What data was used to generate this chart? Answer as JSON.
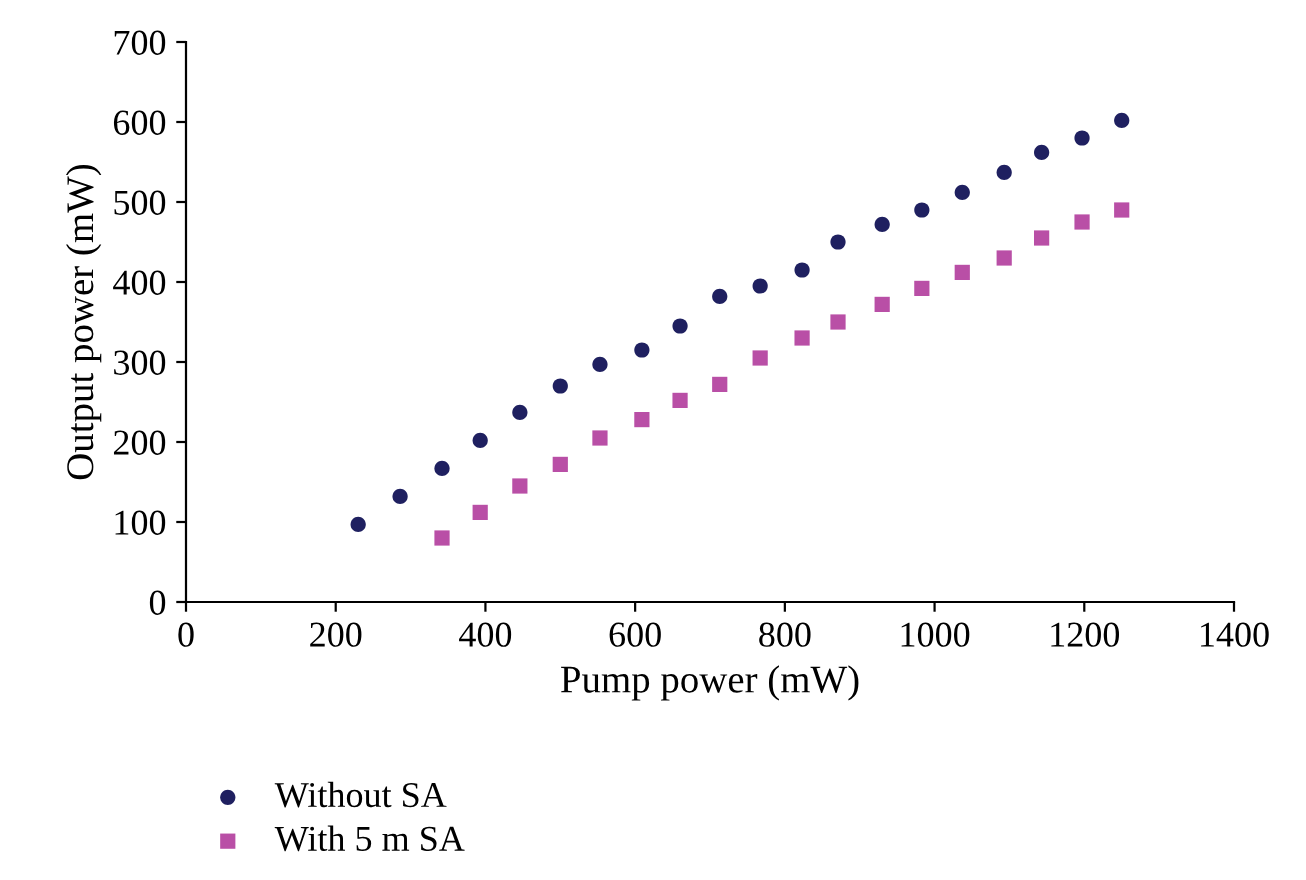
{
  "chart_data": {
    "type": "scatter",
    "xlabel": "Pump power (mW)",
    "ylabel": "Output power (mW)",
    "xlim": [
      0,
      1400
    ],
    "xticks": [
      0,
      200,
      400,
      600,
      800,
      1000,
      1200,
      1400
    ],
    "ylim": [
      0,
      700
    ],
    "yticks": [
      0,
      100,
      200,
      300,
      400,
      500,
      600,
      700
    ],
    "grid": false,
    "legend": "bottom left",
    "series": [
      {
        "name": "Without SA",
        "color": "#1f2060",
        "marker": "circle",
        "x": [
          230,
          286,
          342,
          393,
          446,
          500,
          553,
          609,
          660,
          713,
          767,
          823,
          871,
          930,
          983,
          1037,
          1093,
          1143,
          1197,
          1250
        ],
        "values": [
          97,
          132,
          167,
          202,
          237,
          270,
          297,
          315,
          345,
          382,
          395,
          415,
          450,
          472,
          490,
          512,
          537,
          562,
          580,
          602
        ]
      },
      {
        "name": "With 5 m SA",
        "color": "#b94fa6",
        "marker": "square",
        "x": [
          342,
          393,
          446,
          500,
          553,
          609,
          660,
          713,
          767,
          823,
          871,
          930,
          983,
          1037,
          1093,
          1143,
          1197,
          1250
        ],
        "values": [
          80,
          112,
          145,
          172,
          205,
          228,
          252,
          272,
          305,
          330,
          350,
          372,
          392,
          412,
          430,
          455,
          475,
          490
        ]
      }
    ]
  }
}
